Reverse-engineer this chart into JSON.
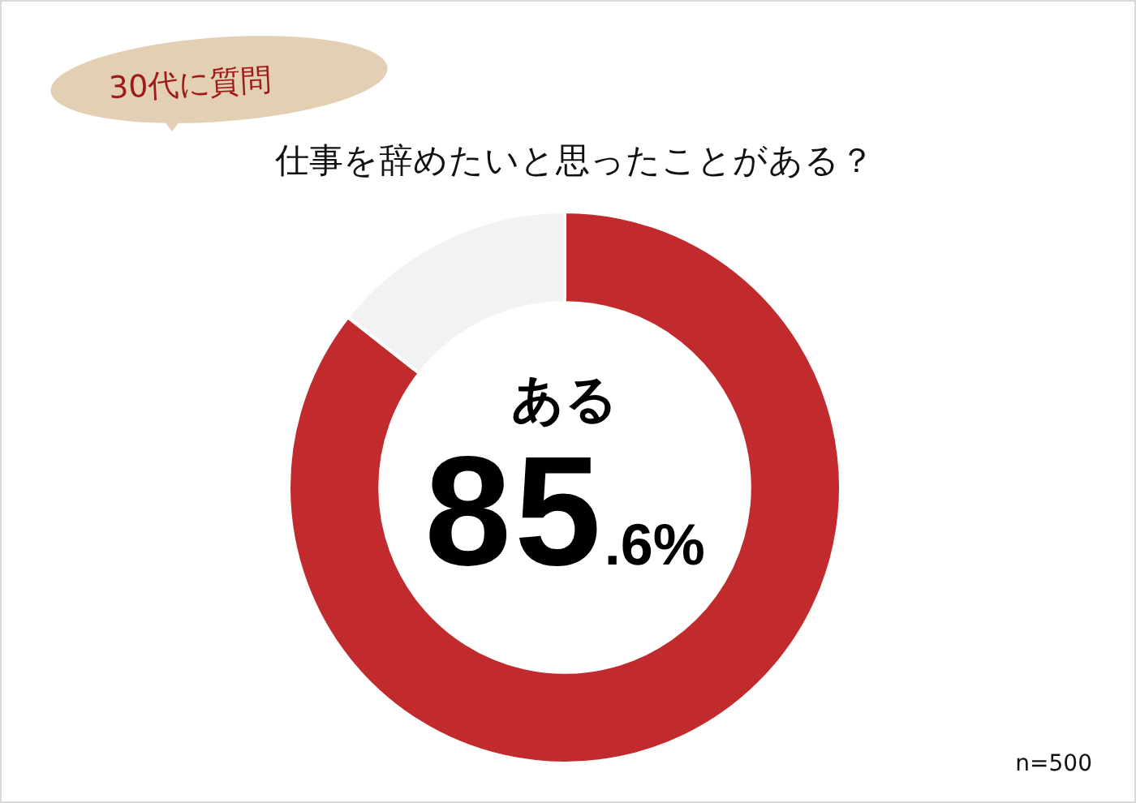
{
  "chart_data": {
    "type": "donut",
    "title": "仕事を辞めたいと思ったことがある？",
    "subtitle": "30代に質問",
    "categories": [
      "ある",
      null
    ],
    "values": [
      85.6,
      14.4
    ],
    "colors": [
      "#c12b2e",
      "#f2f2f2"
    ],
    "value_labels": [
      "85.6%",
      null
    ],
    "annotations": [
      "n=500"
    ]
  }
}
